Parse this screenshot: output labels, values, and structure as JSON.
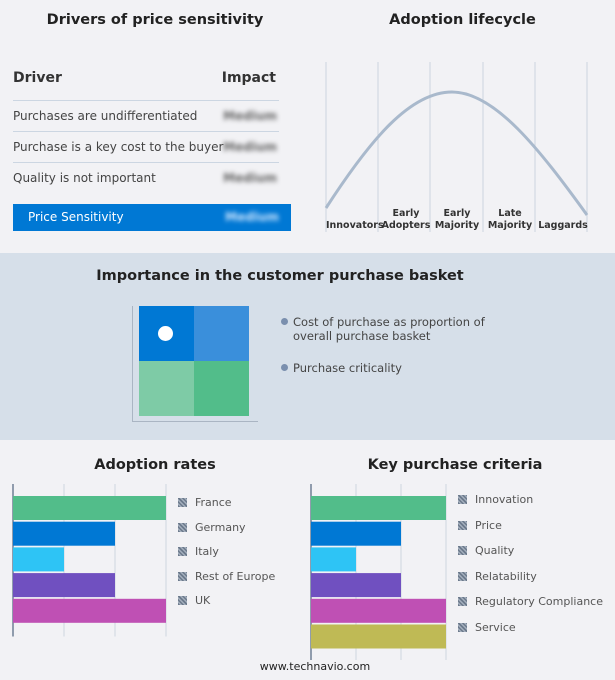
{
  "drivers": {
    "title": "Drivers of price sensitivity",
    "col_driver": "Driver",
    "col_impact": "Impact",
    "rows": [
      {
        "driver": "Purchases are undifferentiated",
        "impact": "Medium"
      },
      {
        "driver": "Purchase is a key cost to the buyer",
        "impact": "Medium"
      },
      {
        "driver": "Quality is not important",
        "impact": "Medium"
      }
    ],
    "summary": {
      "label": "Price Sensitivity",
      "impact": "Medium"
    },
    "accent": "#0078d4"
  },
  "lifecycle": {
    "title": "Adoption lifecycle",
    "stages": [
      "Innovators",
      "Early Adopters",
      "Early Majority",
      "Late Majority",
      "Laggards"
    ],
    "curve_color": "#a9b9cc"
  },
  "basket": {
    "title": "Importance in the customer purchase basket",
    "legend": [
      "Cost of purchase as proportion of overall purchase basket",
      "Purchase criticality"
    ],
    "colors": [
      "#0078d4",
      "#3a8fdb",
      "#7ecba6",
      "#52bd8a"
    ]
  },
  "chart_data": [
    {
      "type": "bar",
      "orientation": "horizontal",
      "title": "Adoption rates",
      "categories": [
        "France",
        "Germany",
        "Italy",
        "Rest of Europe",
        "UK"
      ],
      "values": [
        3,
        2,
        1,
        2,
        3
      ],
      "xlim": [
        0,
        3
      ],
      "grid": true,
      "legend": "right",
      "colors": [
        "#52bd8a",
        "#0078d4",
        "#2ec4f5",
        "#7050c0",
        "#bf50b4"
      ]
    },
    {
      "type": "bar",
      "orientation": "horizontal",
      "title": "Key purchase criteria",
      "categories": [
        "Innovation",
        "Price",
        "Quality",
        "Relatability",
        "Regulatory Compliance",
        "Service"
      ],
      "values": [
        3,
        2,
        1,
        2,
        3,
        3
      ],
      "xlim": [
        0,
        3
      ],
      "grid": true,
      "legend": "right",
      "colors": [
        "#52bd8a",
        "#0078d4",
        "#2ec4f5",
        "#7050c0",
        "#bf50b4",
        "#bfba55"
      ]
    }
  ],
  "footer": "www.technavio.com"
}
